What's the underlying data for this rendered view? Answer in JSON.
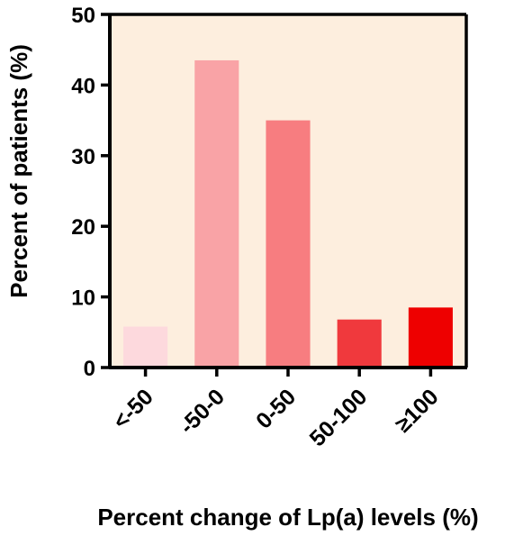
{
  "chart_data": {
    "type": "bar",
    "categories": [
      "<-50",
      "-50-0",
      "0-50",
      "50-100",
      "≥100"
    ],
    "values": [
      5.8,
      43.5,
      35.0,
      6.8,
      8.5
    ],
    "colors": [
      "#fdd9dd",
      "#f9a3a6",
      "#f77d80",
      "#f0393d",
      "#ee0000"
    ],
    "background": "#fdeede",
    "title": "",
    "xlabel": "Percent change of Lp(a) levels (%)",
    "ylabel": "Percent of patients (%)",
    "ylim": [
      0,
      50
    ],
    "yticks": [
      0,
      10,
      20,
      30,
      40,
      50
    ],
    "grid": false,
    "legend": "none"
  }
}
